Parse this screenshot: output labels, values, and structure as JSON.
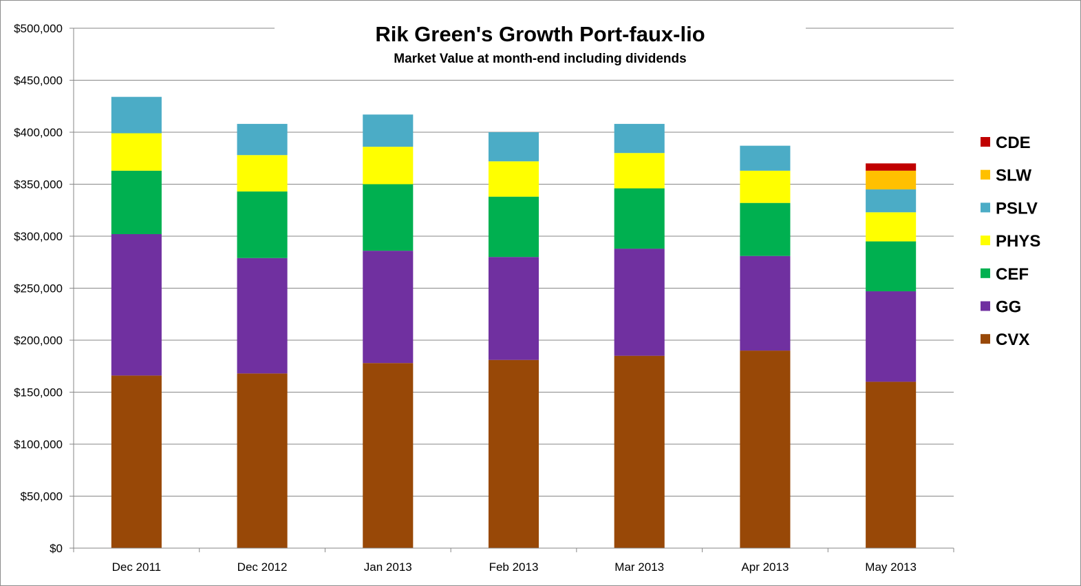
{
  "chart_data": {
    "type": "bar",
    "stacked": true,
    "title": "Rik Green's Growth Port-faux-lio",
    "subtitle": "Market Value at month-end including dividends",
    "xlabel": "",
    "ylabel": "",
    "ylim": [
      0,
      500000
    ],
    "ytick_step": 50000,
    "y_tick_labels": [
      "$0",
      "$50,000",
      "$100,000",
      "$150,000",
      "$200,000",
      "$250,000",
      "$300,000",
      "$350,000",
      "$400,000",
      "$450,000",
      "$500,000"
    ],
    "grid": true,
    "legend_position": "right",
    "categories": [
      "Dec 2011",
      "Dec 2012",
      "Jan 2013",
      "Feb 2013",
      "Mar 2013",
      "Apr 2013",
      "May 2013"
    ],
    "series": [
      {
        "name": "CVX",
        "color": "#984807",
        "values": [
          166000,
          168000,
          178000,
          181000,
          185000,
          190000,
          160000
        ]
      },
      {
        "name": "GG",
        "color": "#7030A0",
        "values": [
          136000,
          111000,
          108000,
          99000,
          103000,
          91000,
          87000
        ]
      },
      {
        "name": "CEF",
        "color": "#00B050",
        "values": [
          61000,
          64000,
          64000,
          58000,
          58000,
          51000,
          48000
        ]
      },
      {
        "name": "PHYS",
        "color": "#FFFF00",
        "values": [
          36000,
          35000,
          36000,
          34000,
          34000,
          31000,
          28000
        ]
      },
      {
        "name": "PSLV",
        "color": "#4BACC6",
        "values": [
          35000,
          30000,
          31000,
          28000,
          28000,
          24000,
          22000
        ]
      },
      {
        "name": "SLW",
        "color": "#FFC000",
        "values": [
          0,
          0,
          0,
          0,
          0,
          0,
          18000
        ]
      },
      {
        "name": "CDE",
        "color": "#C00000",
        "values": [
          0,
          0,
          0,
          0,
          0,
          0,
          7000
        ]
      }
    ]
  }
}
